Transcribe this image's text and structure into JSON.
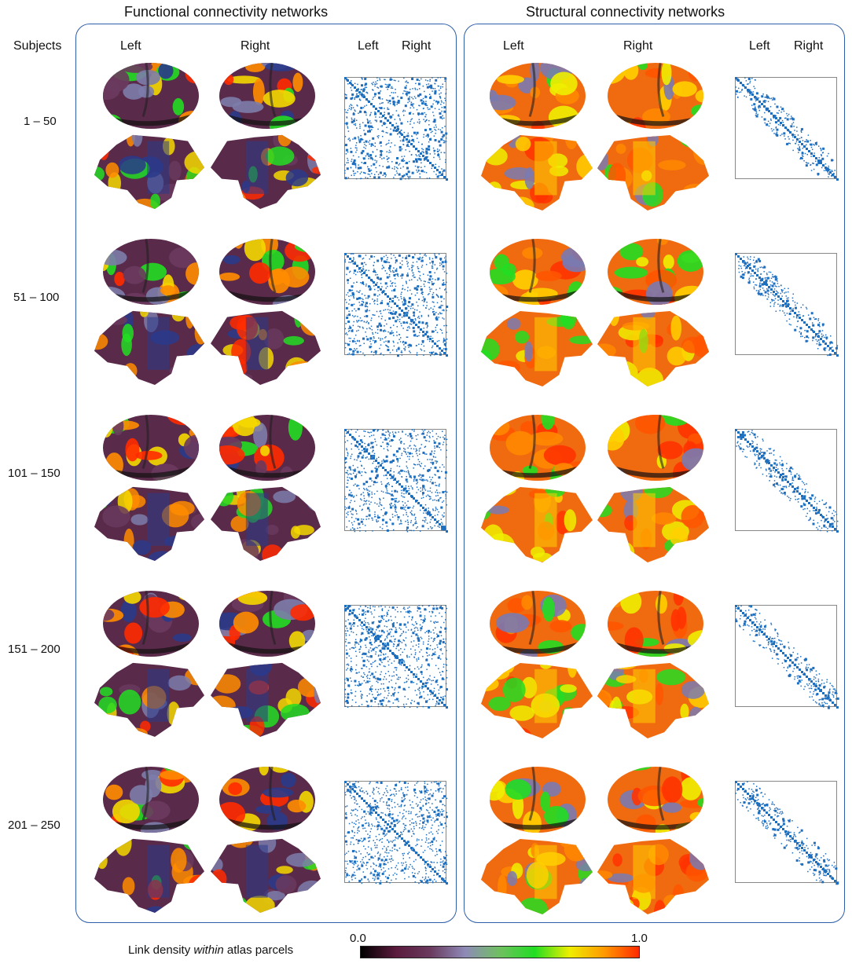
{
  "titles": {
    "functional": "Functional connectivity networks",
    "structural": "Structural connectivity networks"
  },
  "column_headers": {
    "subjects": "Subjects",
    "left": "Left",
    "right": "Right"
  },
  "rows": [
    {
      "label": "1 – 50"
    },
    {
      "label": "51 – 100"
    },
    {
      "label": "101 – 150"
    },
    {
      "label": "151 – 200"
    },
    {
      "label": "201 – 250"
    }
  ],
  "legend": {
    "label_before": "Link density ",
    "label_italic": "within",
    "label_after": " atlas parcels",
    "min": "0.0",
    "max": "1.0",
    "colormap": [
      "#000000",
      "#5a1a3c",
      "#6a3a5e",
      "#8e8ab8",
      "#6fc060",
      "#22dd22",
      "#eeee00",
      "#ff9900",
      "#ff2a00"
    ]
  },
  "colors": {
    "panel_border": "#2f5ea8",
    "matrix_blue": "#1f6fbf",
    "functional_base": "#5a2a4a",
    "structural_base": "#f06a10"
  }
}
